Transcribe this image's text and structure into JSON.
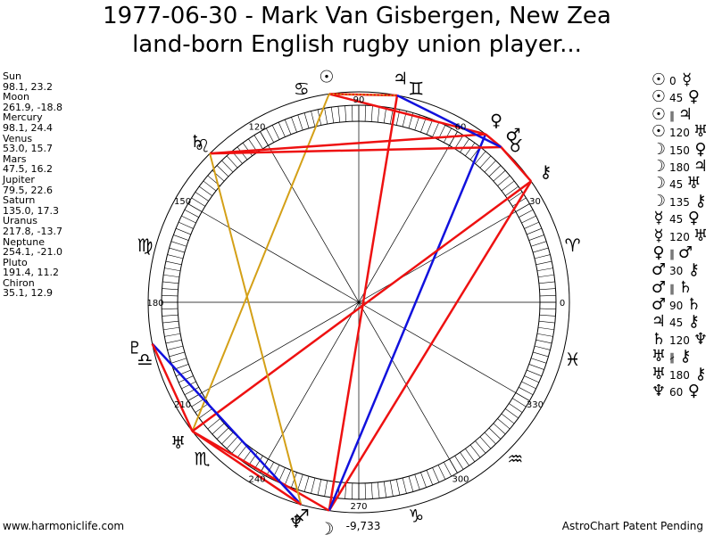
{
  "title_line1": "1977-06-30 - Mark Van Gisbergen, New Zea",
  "title_line2": "land-born English rugby union player...",
  "planets": [
    {
      "name": "Sun",
      "pos": "98.1, 23.2"
    },
    {
      "name": "Moon",
      "pos": "261.9, -18.8"
    },
    {
      "name": "Mercury",
      "pos": "98.1, 24.4"
    },
    {
      "name": "Venus",
      "pos": "53.0, 15.7"
    },
    {
      "name": "Mars",
      "pos": "47.5, 16.2"
    },
    {
      "name": "Jupiter",
      "pos": "79.5, 22.6"
    },
    {
      "name": "Saturn",
      "pos": "135.0, 17.3"
    },
    {
      "name": "Uranus",
      "pos": "217.8, -13.7"
    },
    {
      "name": "Neptune",
      "pos": "254.1, -21.0"
    },
    {
      "name": "Pluto",
      "pos": "191.4, 11.2"
    },
    {
      "name": "Chiron",
      "pos": "35.1, 12.9"
    }
  ],
  "aspects": [
    {
      "p1": "☉",
      "angle": "0",
      "p2": "☿"
    },
    {
      "p1": "☉",
      "angle": "45",
      "p2": "♀"
    },
    {
      "p1": "☉",
      "angle": "∥",
      "p2": "♃"
    },
    {
      "p1": "☉",
      "angle": "120",
      "p2": "♅"
    },
    {
      "p1": "☽",
      "angle": "150",
      "p2": "♀"
    },
    {
      "p1": "☽",
      "angle": "180",
      "p2": "♃"
    },
    {
      "p1": "☽",
      "angle": "45",
      "p2": "♅"
    },
    {
      "p1": "☽",
      "angle": "135",
      "p2": "⚷"
    },
    {
      "p1": "☿",
      "angle": "45",
      "p2": "♀"
    },
    {
      "p1": "☿",
      "angle": "120",
      "p2": "♅"
    },
    {
      "p1": "♀",
      "angle": "∥",
      "p2": "♂"
    },
    {
      "p1": "♂",
      "angle": "30",
      "p2": "⚷"
    },
    {
      "p1": "♂",
      "angle": "∥",
      "p2": "♄"
    },
    {
      "p1": "♂",
      "angle": "90",
      "p2": "♄"
    },
    {
      "p1": "♃",
      "angle": "45",
      "p2": "⚷"
    },
    {
      "p1": "♄",
      "angle": "120",
      "p2": "♆"
    },
    {
      "p1": "♅",
      "angle": "∦",
      "p2": "⚷"
    },
    {
      "p1": "♅",
      "angle": "180",
      "p2": "⚷"
    },
    {
      "p1": "♆",
      "angle": "60",
      "p2": "♀"
    }
  ],
  "degree_labels": [
    {
      "deg": 0,
      "text": "0"
    },
    {
      "deg": 30,
      "text": "30"
    },
    {
      "deg": 60,
      "text": "60"
    },
    {
      "deg": 90,
      "text": "90"
    },
    {
      "deg": 120,
      "text": "120"
    },
    {
      "deg": 150,
      "text": "150"
    },
    {
      "deg": 180,
      "text": "180"
    },
    {
      "deg": 210,
      "text": "210"
    },
    {
      "deg": 240,
      "text": "240"
    },
    {
      "deg": 270,
      "text": "270"
    },
    {
      "deg": 300,
      "text": "300"
    },
    {
      "deg": 330,
      "text": "330"
    }
  ],
  "zodiac_glyphs": [
    {
      "deg": 15,
      "glyph": "♈"
    },
    {
      "deg": 45,
      "glyph": "♉"
    },
    {
      "deg": 75,
      "glyph": "♊"
    },
    {
      "deg": 105,
      "glyph": "♋"
    },
    {
      "deg": 135,
      "glyph": "♌"
    },
    {
      "deg": 165,
      "glyph": "♍"
    },
    {
      "deg": 195,
      "glyph": "♎"
    },
    {
      "deg": 225,
      "glyph": "♏"
    },
    {
      "deg": 255,
      "glyph": "♐"
    },
    {
      "deg": 285,
      "glyph": "♑"
    },
    {
      "deg": 315,
      "glyph": "♒"
    },
    {
      "deg": 345,
      "glyph": "♓"
    }
  ],
  "planet_glyphs": [
    {
      "glyph": "☉",
      "lon": 98.1
    },
    {
      "glyph": "♃",
      "lon": 79.5
    },
    {
      "glyph": "♀",
      "lon": 53.0
    },
    {
      "glyph": "♂",
      "lon": 47.5
    },
    {
      "glyph": "⚷",
      "lon": 35.1
    },
    {
      "glyph": "♄",
      "lon": 135.0
    },
    {
      "glyph": "♇",
      "lon": 191.4
    },
    {
      "glyph": "♅",
      "lon": 217.8
    },
    {
      "glyph": "♆",
      "lon": 254.1
    },
    {
      "glyph": "☽",
      "lon": 261.9
    }
  ],
  "bottom_value": "-9,733",
  "footer_left": "www.harmoniclife.com",
  "footer_right": "AstroChart Patent Pending",
  "colors": {
    "red": "#ee1111",
    "blue": "#1111dd",
    "gold": "#d4a017"
  }
}
